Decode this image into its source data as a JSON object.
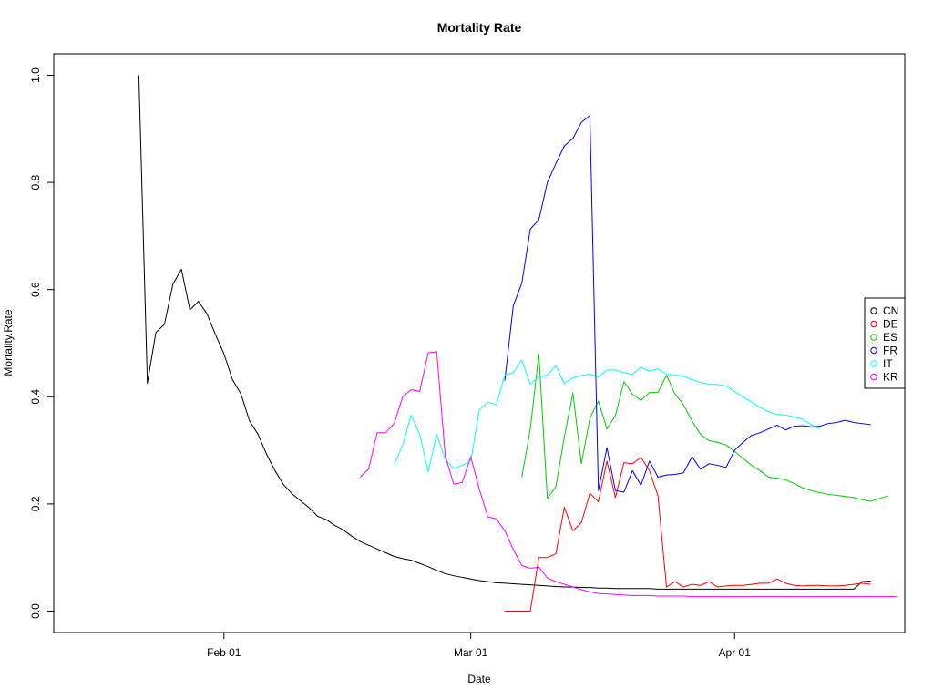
{
  "chart_data": {
    "type": "line",
    "title": "Mortality Rate",
    "xlabel": "Date",
    "ylabel": "Mortality.Rate",
    "x_type": "date",
    "xlim": [
      "2020-01-12",
      "2020-04-21"
    ],
    "ylim": [
      -0.04,
      1.04
    ],
    "x_ticks": [
      {
        "date": "2020-02-01",
        "label": "Feb 01"
      },
      {
        "date": "2020-03-01",
        "label": "Mar 01"
      },
      {
        "date": "2020-04-01",
        "label": "Apr 01"
      }
    ],
    "y_ticks": [
      {
        "value": 0.0,
        "label": "0.0"
      },
      {
        "value": 0.2,
        "label": "0.2"
      },
      {
        "value": 0.4,
        "label": "0.4"
      },
      {
        "value": 0.6,
        "label": "0.6"
      },
      {
        "value": 0.8,
        "label": "0.8"
      },
      {
        "value": 1.0,
        "label": "1.0"
      }
    ],
    "grid": false,
    "legend_position": "right",
    "series": [
      {
        "name": "CN",
        "color": "#000000",
        "start": "2020-01-22",
        "values": [
          1.0,
          0.425,
          0.52,
          0.535,
          0.61,
          0.638,
          0.562,
          0.578,
          0.555,
          0.516,
          0.48,
          0.432,
          0.405,
          0.355,
          0.33,
          0.293,
          0.262,
          0.236,
          0.219,
          0.206,
          0.193,
          0.177,
          0.171,
          0.16,
          0.152,
          0.14,
          0.13,
          0.123,
          0.116,
          0.109,
          0.102,
          0.098,
          0.095,
          0.089,
          0.083,
          0.076,
          0.07,
          0.066,
          0.063,
          0.06,
          0.057,
          0.055,
          0.053,
          0.052,
          0.051,
          0.05,
          0.049,
          0.048,
          0.047,
          0.046,
          0.045,
          0.045,
          0.044,
          0.044,
          0.043,
          0.043,
          0.042,
          0.042,
          0.042,
          0.042,
          0.042,
          0.041,
          0.041,
          0.041,
          0.041,
          0.041,
          0.041,
          0.041,
          0.041,
          0.041,
          0.041,
          0.041,
          0.041,
          0.041,
          0.041,
          0.041,
          0.041,
          0.041,
          0.041,
          0.041,
          0.041,
          0.041,
          0.041,
          0.041,
          0.041,
          0.055,
          0.056
        ]
      },
      {
        "name": "DE",
        "color": "#ff0000",
        "start": "2020-03-05",
        "values": [
          0.0,
          0.0,
          0.0,
          0.0,
          0.1,
          0.1,
          0.107,
          0.194,
          0.15,
          0.165,
          0.22,
          0.204,
          0.28,
          0.212,
          0.277,
          0.275,
          0.287,
          0.262,
          0.215,
          0.045,
          0.055,
          0.045,
          0.05,
          0.048,
          0.055,
          0.045,
          0.047,
          0.048,
          0.048,
          0.05,
          0.052,
          0.052,
          0.06,
          0.052,
          0.048,
          0.047,
          0.048,
          0.048,
          0.047,
          0.047,
          0.048,
          0.05,
          0.052,
          0.05
        ]
      },
      {
        "name": "ES",
        "color": "#00cd00",
        "start": "2020-03-07",
        "values": [
          0.25,
          0.34,
          0.48,
          0.21,
          0.232,
          0.325,
          0.407,
          0.275,
          0.36,
          0.392,
          0.34,
          0.365,
          0.428,
          0.405,
          0.393,
          0.408,
          0.408,
          0.44,
          0.405,
          0.385,
          0.355,
          0.33,
          0.318,
          0.315,
          0.31,
          0.298,
          0.285,
          0.272,
          0.262,
          0.25,
          0.248,
          0.245,
          0.238,
          0.23,
          0.225,
          0.221,
          0.218,
          0.216,
          0.214,
          0.212,
          0.208,
          0.205,
          0.21,
          0.215
        ]
      },
      {
        "name": "FR",
        "color": "#0000ff",
        "start": "2020-03-05",
        "values": [
          0.43,
          0.57,
          0.612,
          0.713,
          0.73,
          0.8,
          0.835,
          0.868,
          0.882,
          0.912,
          0.925,
          0.225,
          0.305,
          0.225,
          0.222,
          0.262,
          0.235,
          0.28,
          0.25,
          0.254,
          0.255,
          0.258,
          0.288,
          0.265,
          0.275,
          0.272,
          0.268,
          0.3,
          0.315,
          0.328,
          0.333,
          0.34,
          0.347,
          0.338,
          0.345,
          0.346,
          0.344,
          0.345,
          0.35,
          0.352,
          0.356,
          0.352,
          0.35,
          0.348
        ]
      },
      {
        "name": "IT",
        "color": "#00ffff",
        "start": "2020-02-21",
        "values": [
          0.273,
          0.31,
          0.366,
          0.33,
          0.26,
          0.33,
          0.283,
          0.266,
          0.272,
          0.28,
          0.375,
          0.39,
          0.385,
          0.44,
          0.445,
          0.468,
          0.423,
          0.437,
          0.44,
          0.458,
          0.425,
          0.435,
          0.44,
          0.442,
          0.437,
          0.45,
          0.45,
          0.445,
          0.442,
          0.455,
          0.448,
          0.452,
          0.442,
          0.441,
          0.438,
          0.432,
          0.427,
          0.423,
          0.423,
          0.42,
          0.41,
          0.4,
          0.39,
          0.38,
          0.372,
          0.367,
          0.366,
          0.362,
          0.358,
          0.348,
          0.34
        ]
      },
      {
        "name": "KR",
        "color": "#ff00ff",
        "start": "2020-02-17",
        "values": [
          0.25,
          0.265,
          0.333,
          0.333,
          0.35,
          0.4,
          0.413,
          0.41,
          0.482,
          0.484,
          0.29,
          0.237,
          0.24,
          0.288,
          0.228,
          0.176,
          0.172,
          0.15,
          0.115,
          0.085,
          0.08,
          0.082,
          0.062,
          0.055,
          0.05,
          0.045,
          0.04,
          0.036,
          0.033,
          0.032,
          0.031,
          0.03,
          0.029,
          0.029,
          0.029,
          0.028,
          0.028,
          0.028,
          0.028,
          0.027,
          0.027,
          0.027,
          0.027,
          0.027,
          0.027,
          0.027,
          0.027,
          0.027,
          0.027,
          0.027,
          0.027,
          0.027,
          0.027,
          0.027,
          0.027,
          0.027,
          0.027,
          0.027,
          0.027,
          0.027,
          0.027,
          0.027,
          0.027,
          0.027
        ]
      }
    ]
  }
}
